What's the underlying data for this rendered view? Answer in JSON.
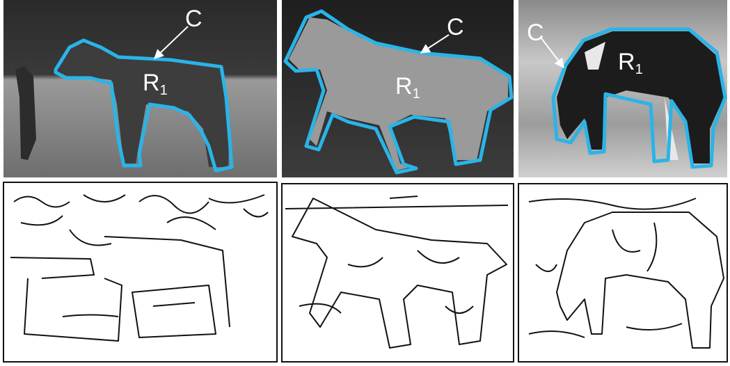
{
  "panels": [
    {
      "contour_label": "C",
      "region_label": "R",
      "region_subscript": "1"
    },
    {
      "contour_label": "C",
      "region_label": "R",
      "region_subscript": "1"
    },
    {
      "contour_label": "C",
      "region_label": "R",
      "region_subscript": "1"
    }
  ]
}
